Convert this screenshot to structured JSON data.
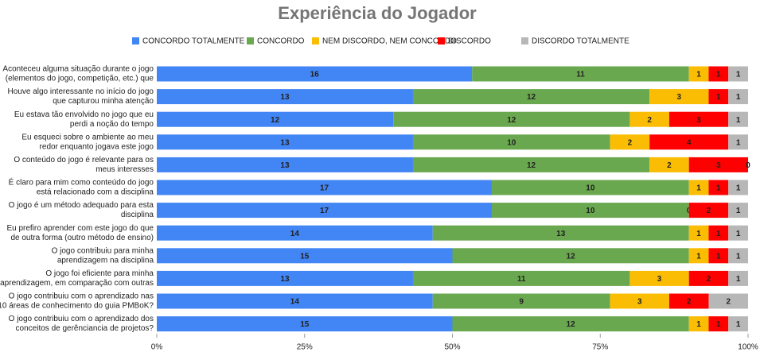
{
  "chart_data": {
    "type": "stacked_bar_horizontal_percent",
    "title": "Experiência do Jogador",
    "categories": [
      [
        "Aconteceu alguma situação durante o jogo",
        "(elementos do jogo, competição, etc.) que"
      ],
      [
        "Houve algo interessante no início do jogo",
        "que capturou minha atenção"
      ],
      [
        "Eu estava tão envolvido no jogo que eu",
        "perdi a noção do tempo"
      ],
      [
        "Eu esqueci sobre o ambiente ao meu",
        "redor enquanto jogava este jogo"
      ],
      [
        "O conteúdo do jogo é relevante para os",
        "meus interesses"
      ],
      [
        "É claro para mim como conteúdo do jogo",
        "está relacionado com a disciplina"
      ],
      [
        "O jogo é um método adequado para esta",
        "disciplina"
      ],
      [
        "Eu prefiro aprender com este jogo do que",
        "de outra forma (outro método de ensino)"
      ],
      [
        "O jogo contribuiu para minha",
        "aprendizagem na disciplina"
      ],
      [
        "O jogo foi eficiente para minha",
        "aprendizagem, em comparação com outras"
      ],
      [
        "O jogo contribuiu com o aprendizado nas",
        "10 áreas de conhecimento do guia PMBoK?"
      ],
      [
        "O jogo contribuiu com o aprendizado dos",
        "conceitos de gerênciancia de projetos?"
      ]
    ],
    "series": [
      {
        "name": "CONCORDO TOTALMENTE",
        "color": "#4285f4",
        "values": [
          16,
          13,
          12,
          13,
          13,
          17,
          17,
          14,
          15,
          13,
          14,
          15
        ]
      },
      {
        "name": "CONCORDO",
        "color": "#6aa84f",
        "values": [
          11,
          12,
          12,
          10,
          12,
          10,
          10,
          13,
          12,
          11,
          9,
          12
        ]
      },
      {
        "name": "NEM DISCORDO, NEM CONCORDO",
        "color": "#fbbc04",
        "values": [
          1,
          3,
          2,
          2,
          2,
          1,
          0,
          1,
          1,
          3,
          3,
          1
        ]
      },
      {
        "name": "DISCORDO",
        "color": "#ff0000",
        "values": [
          1,
          1,
          3,
          4,
          3,
          1,
          2,
          1,
          1,
          2,
          2,
          1
        ]
      },
      {
        "name": "DISCORDO TOTALMENTE",
        "color": "#b7b7b7",
        "values": [
          1,
          1,
          1,
          1,
          0,
          1,
          1,
          1,
          1,
          1,
          2,
          1
        ]
      }
    ],
    "xlim": [
      0,
      100
    ],
    "xticks": [
      {
        "value": 0,
        "label": "0%"
      },
      {
        "value": 25,
        "label": "25%"
      },
      {
        "value": 50,
        "label": "50%"
      },
      {
        "value": 75,
        "label": "75%"
      },
      {
        "value": 100,
        "label": "100%"
      }
    ],
    "legend": "top"
  }
}
